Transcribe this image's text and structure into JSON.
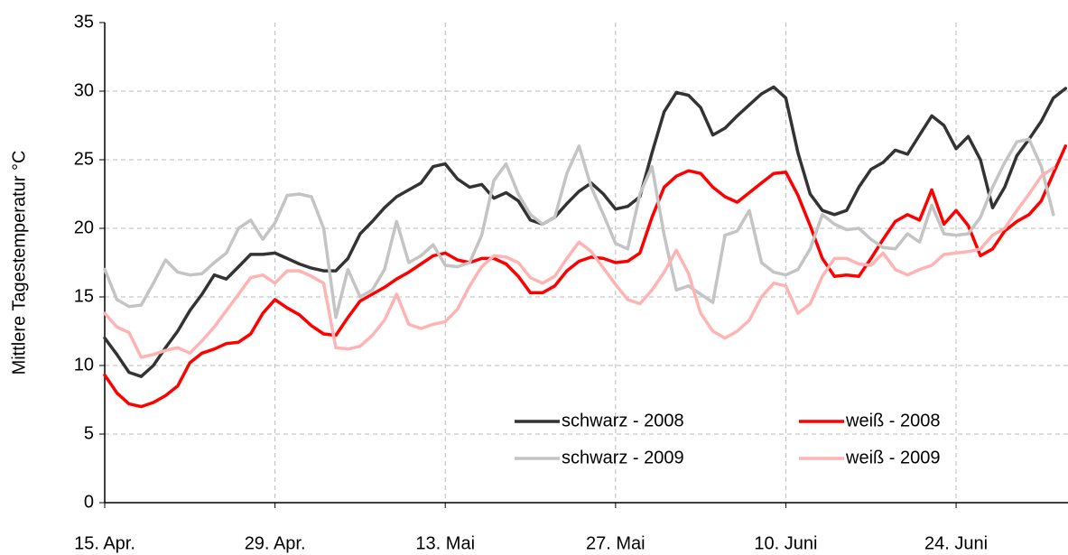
{
  "chart_data": {
    "type": "line",
    "y_label": "Mittlere Tagestemperatur °C",
    "x": [
      0,
      1,
      2,
      3,
      4,
      5,
      6,
      7,
      8,
      9,
      10,
      11,
      12,
      13,
      14,
      15,
      16,
      17,
      18,
      19,
      20,
      21,
      22,
      23,
      24,
      25,
      26,
      27,
      28,
      29,
      30,
      31,
      32,
      33,
      34,
      35,
      36,
      37,
      38,
      39,
      40,
      41,
      42,
      43,
      44,
      45,
      46,
      47,
      48,
      49,
      50,
      51,
      52,
      53,
      54,
      55,
      56,
      57,
      58,
      59,
      60,
      61,
      62,
      63,
      64,
      65,
      66,
      67,
      68,
      69,
      70,
      71,
      72,
      73,
      74,
      75,
      76,
      77,
      78,
      79
    ],
    "xlim": [
      0,
      79.2
    ],
    "xticks": [
      {
        "value": 0,
        "label": "15. Apr."
      },
      {
        "value": 14,
        "label": "29. Apr."
      },
      {
        "value": 28,
        "label": "13. Mai"
      },
      {
        "value": 42,
        "label": "27. Mai"
      },
      {
        "value": 56,
        "label": "10. Juni"
      },
      {
        "value": 70,
        "label": "24. Juni"
      }
    ],
    "ylim": [
      0,
      35
    ],
    "yticks": [
      0,
      5,
      10,
      15,
      20,
      25,
      30,
      35
    ],
    "grid": true,
    "legend": "lower right",
    "series": [
      {
        "name": "schwarz - 2008",
        "color": "#333333",
        "values": [
          12,
          10.8,
          9.5,
          9.2,
          10,
          11.3,
          12.5,
          14,
          15.2,
          16.6,
          16.3,
          17.2,
          18.1,
          18.1,
          18.2,
          17.8,
          17.4,
          17.1,
          16.9,
          16.9,
          17.8,
          19.6,
          20.5,
          21.5,
          22.3,
          22.8,
          23.3,
          24.5,
          24.7,
          23.6,
          23,
          23.2,
          22.2,
          22.6,
          22,
          20.6,
          20.3,
          20.8,
          21.8,
          22.7,
          23.3,
          22.5,
          21.4,
          21.6,
          22.3,
          25.5,
          28.5,
          29.9,
          29.7,
          28.8,
          26.8,
          27.3,
          28.2,
          29,
          29.8,
          30.3,
          29.5,
          25.5,
          22.5,
          21.3,
          21,
          21.3,
          23,
          24.3,
          24.8,
          25.7,
          25.4,
          26.8,
          28.2,
          27.5,
          25.8,
          26.7,
          25,
          21.5,
          23,
          25.3,
          26.5,
          27.8,
          29.5,
          30.2
        ]
      },
      {
        "name": "weiß - 2008",
        "color": "#ff0000",
        "values": [
          9.3,
          8,
          7.2,
          7,
          7.3,
          7.8,
          8.5,
          10.2,
          10.9,
          11.2,
          11.6,
          11.7,
          12.3,
          13.8,
          14.8,
          14.2,
          13.7,
          12.9,
          12.3,
          12.2,
          13.5,
          14.7,
          15.2,
          15.7,
          16.3,
          16.8,
          17.4,
          18,
          18.2,
          17.7,
          17.5,
          17.8,
          17.8,
          17.4,
          16.5,
          15.3,
          15.3,
          15.8,
          16.9,
          17.6,
          17.9,
          17.8,
          17.5,
          17.6,
          18.2,
          20.8,
          23,
          23.8,
          24.2,
          24,
          23,
          22.3,
          21.9,
          22.6,
          23.3,
          24,
          24.1,
          22.4,
          20.2,
          17.8,
          16.5,
          16.6,
          16.5,
          17.8,
          19.2,
          20.5,
          21,
          20.6,
          22.8,
          20.3,
          21.3,
          20.2,
          18,
          18.5,
          19.8,
          20.5,
          21,
          22,
          24,
          26
        ]
      },
      {
        "name": "schwarz - 2009",
        "color": "#c4c4c4",
        "values": [
          17,
          14.8,
          14.3,
          14.4,
          16,
          17.7,
          16.8,
          16.6,
          16.7,
          17.5,
          18.2,
          20,
          20.6,
          19.2,
          20.4,
          22.4,
          22.5,
          22.3,
          20,
          13.5,
          17,
          15,
          15.5,
          17,
          20.5,
          17.5,
          18,
          18.8,
          17.3,
          17.2,
          17.5,
          19.5,
          23.5,
          24.7,
          22.5,
          21,
          20.3,
          20.8,
          24,
          26,
          23,
          21,
          18.9,
          18.5,
          22.5,
          24.5,
          19.5,
          15.5,
          15.8,
          15.2,
          14.6,
          19.5,
          19.8,
          21.3,
          17.5,
          16.8,
          16.6,
          17,
          18.5,
          21,
          20.3,
          19.9,
          20,
          19.2,
          18.6,
          18.5,
          19.6,
          19,
          21.7,
          19.6,
          19.5,
          19.6,
          20.8,
          23,
          24.8,
          26.3,
          26.5,
          24.5,
          21,
          null
        ]
      },
      {
        "name": "weiß - 2009",
        "color": "#ffb3b3",
        "values": [
          13.8,
          12.8,
          12.4,
          10.6,
          10.8,
          11.1,
          11.3,
          10.9,
          11.8,
          12.8,
          14,
          15.2,
          16.4,
          16.6,
          16,
          16.9,
          16.9,
          16.5,
          16,
          11.3,
          11.2,
          11.4,
          12.2,
          13.3,
          15.2,
          13,
          12.7,
          13,
          13.2,
          14.1,
          15.8,
          17.2,
          18,
          17.9,
          17.5,
          16.4,
          16,
          16.5,
          17.8,
          19,
          18.3,
          17.1,
          15.9,
          14.8,
          14.5,
          15.5,
          16.8,
          18.4,
          16.7,
          13.8,
          12.5,
          12,
          12.5,
          13.3,
          15,
          16,
          15.8,
          13.8,
          14.5,
          16.5,
          17.8,
          17.8,
          17.4,
          17.3,
          18.2,
          17,
          16.6,
          17,
          17.3,
          18.1,
          18.2,
          18.3,
          18.5,
          19.5,
          20,
          21.3,
          22.5,
          23.8,
          24.4,
          null
        ]
      }
    ]
  }
}
